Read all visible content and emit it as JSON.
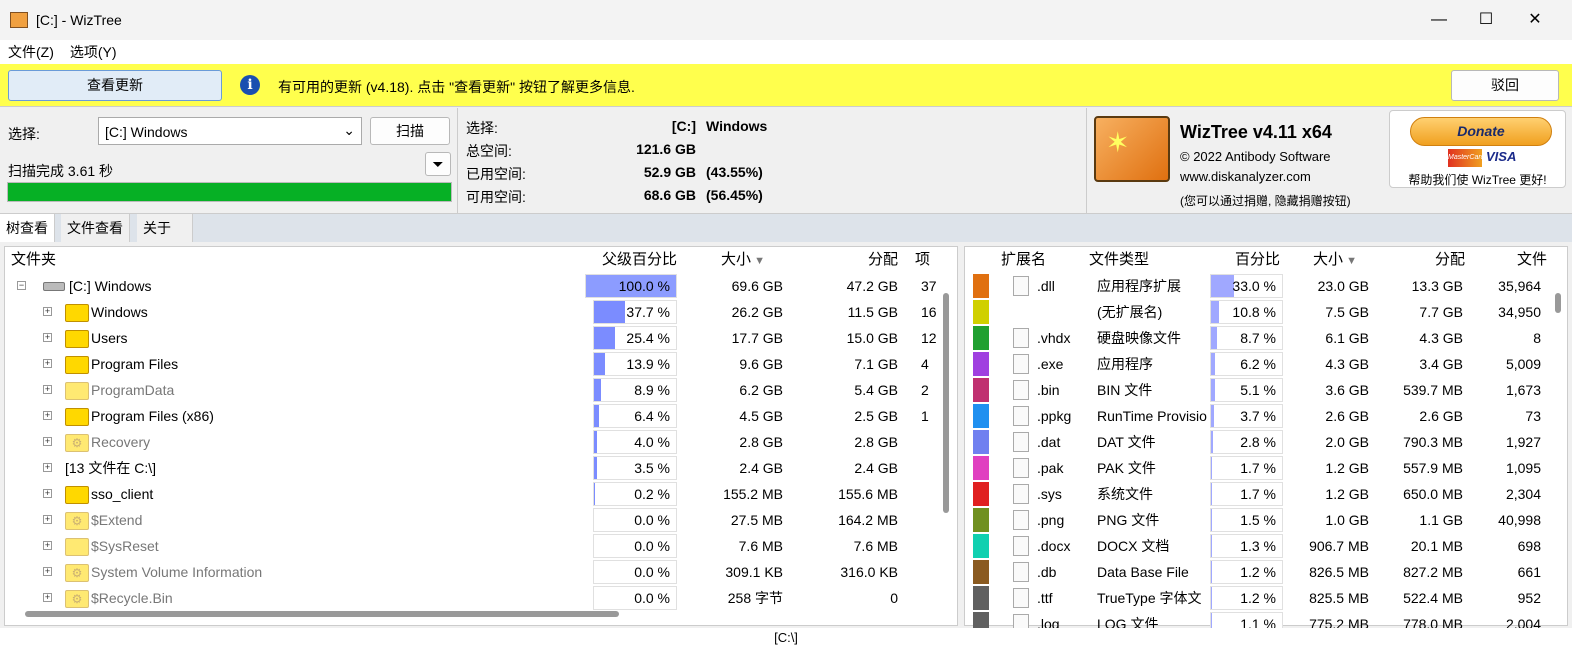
{
  "window": {
    "title": "[C:]  - WizTree",
    "minimize": "—",
    "maximize": "☐",
    "close": "✕"
  },
  "menu": [
    "文件(Z)",
    "选项(Y)"
  ],
  "update": {
    "button": "查看更新",
    "message": "有可用的更新 (v4.18). 点击 \"查看更新\" 按钮了解更多信息.",
    "dismiss": "驳回",
    "info_icon": "i"
  },
  "scan": {
    "select_label": "选择:",
    "drive_value": "[C:] Windows",
    "scan_button": "扫描",
    "status": "扫描完成 3.61 秒",
    "progress": 1.0,
    "filter_icon": "filter-icon"
  },
  "drive_info": {
    "rows": [
      {
        "label": "选择:",
        "value": "[C:]",
        "extra": "Windows"
      },
      {
        "label": "总空间:",
        "value": "121.6 GB",
        "extra": ""
      },
      {
        "label": "已用空间:",
        "value": "52.9 GB",
        "extra": "(43.55%)"
      },
      {
        "label": "可用空间:",
        "value": "68.6 GB",
        "extra": "(56.45%)"
      }
    ]
  },
  "about": {
    "title": "WizTree v4.11 x64",
    "copyright": "© 2022 Antibody Software",
    "url": "www.diskanalyzer.com",
    "note": "(您可以通过捐赠, 隐藏捐赠按钮)",
    "donate": "Donate",
    "mastercard": "MasterCard",
    "visa": "VISA",
    "help": "帮助我们使 WizTree 更好!"
  },
  "tabs": [
    "树查看",
    "文件查看",
    "关于"
  ],
  "tree": {
    "headers": [
      "文件夹",
      "父级百分比",
      "大小",
      "分配",
      "项"
    ],
    "rows": [
      {
        "name": "[C:] Windows",
        "pct": "100.0 %",
        "p": 100,
        "size": "69.6 GB",
        "alloc": "47.2 GB",
        "items": "37",
        "type": "drive",
        "exp": "−"
      },
      {
        "name": "Windows",
        "pct": "37.7 %",
        "p": 37.7,
        "size": "26.2 GB",
        "alloc": "11.5 GB",
        "items": "16",
        "type": "folder",
        "exp": "+"
      },
      {
        "name": "Users",
        "pct": "25.4 %",
        "p": 25.4,
        "size": "17.7 GB",
        "alloc": "15.0 GB",
        "items": "12",
        "type": "folder",
        "exp": "+"
      },
      {
        "name": "Program Files",
        "pct": "13.9 %",
        "p": 13.9,
        "size": "9.6 GB",
        "alloc": "7.1 GB",
        "items": "4",
        "type": "folder",
        "exp": "+"
      },
      {
        "name": "ProgramData",
        "pct": "8.9 %",
        "p": 8.9,
        "size": "6.2 GB",
        "alloc": "5.4 GB",
        "items": "2",
        "type": "folder-hidden",
        "exp": "+"
      },
      {
        "name": "Program Files (x86)",
        "pct": "6.4 %",
        "p": 6.4,
        "size": "4.5 GB",
        "alloc": "2.5 GB",
        "items": "1",
        "type": "folder",
        "exp": "+"
      },
      {
        "name": "Recovery",
        "pct": "4.0 %",
        "p": 4.0,
        "size": "2.8 GB",
        "alloc": "2.8 GB",
        "items": "",
        "type": "folder-system",
        "exp": "+"
      },
      {
        "name": "[13 文件在 C:\\]",
        "pct": "3.5 %",
        "p": 3.5,
        "size": "2.4 GB",
        "alloc": "2.4 GB",
        "items": "",
        "type": "files",
        "exp": "+"
      },
      {
        "name": "sso_client",
        "pct": "0.2 %",
        "p": 0.2,
        "size": "155.2 MB",
        "alloc": "155.6 MB",
        "items": "",
        "type": "folder",
        "exp": "+"
      },
      {
        "name": "$Extend",
        "pct": "0.0 %",
        "p": 0,
        "size": "27.5 MB",
        "alloc": "164.2 MB",
        "items": "",
        "type": "folder-system",
        "exp": "+"
      },
      {
        "name": "$SysReset",
        "pct": "0.0 %",
        "p": 0,
        "size": "7.6 MB",
        "alloc": "7.6 MB",
        "items": "",
        "type": "folder-hidden",
        "exp": "+"
      },
      {
        "name": "System Volume Information",
        "pct": "0.0 %",
        "p": 0,
        "size": "309.1 KB",
        "alloc": "316.0 KB",
        "items": "",
        "type": "folder-system",
        "exp": "+"
      },
      {
        "name": "$Recycle.Bin",
        "pct": "0.0 %",
        "p": 0,
        "size": "258 字节",
        "alloc": "0",
        "items": "",
        "type": "folder-system",
        "exp": "+"
      }
    ]
  },
  "ext": {
    "headers": [
      "扩展名",
      "文件类型",
      "百分比",
      "大小",
      "分配",
      "文件"
    ],
    "rows": [
      {
        "ext": ".dll",
        "type": "应用程序扩展",
        "pct": "33.0 %",
        "p": 33,
        "size": "23.0 GB",
        "alloc": "13.3 GB",
        "files": "35,964",
        "color": "#e07010"
      },
      {
        "ext": "",
        "type": "(无扩展名)",
        "pct": "10.8 %",
        "p": 10.8,
        "size": "7.5 GB",
        "alloc": "7.7 GB",
        "files": "34,950",
        "color": "#d0d000"
      },
      {
        "ext": ".vhdx",
        "type": "硬盘映像文件",
        "pct": "8.7 %",
        "p": 8.7,
        "size": "6.1 GB",
        "alloc": "4.3 GB",
        "files": "8",
        "color": "#20a030"
      },
      {
        "ext": ".exe",
        "type": "应用程序",
        "pct": "6.2 %",
        "p": 6.2,
        "size": "4.3 GB",
        "alloc": "3.4 GB",
        "files": "5,009",
        "color": "#a040e0"
      },
      {
        "ext": ".bin",
        "type": "BIN 文件",
        "pct": "5.1 %",
        "p": 5.1,
        "size": "3.6 GB",
        "alloc": "539.7 MB",
        "files": "1,673",
        "color": "#c03070"
      },
      {
        "ext": ".ppkg",
        "type": "RunTime Provisio",
        "pct": "3.7 %",
        "p": 3.7,
        "size": "2.6 GB",
        "alloc": "2.6 GB",
        "files": "73",
        "color": "#2090f0"
      },
      {
        "ext": ".dat",
        "type": "DAT 文件",
        "pct": "2.8 %",
        "p": 2.8,
        "size": "2.0 GB",
        "alloc": "790.3 MB",
        "files": "1,927",
        "color": "#7080f0"
      },
      {
        "ext": ".pak",
        "type": "PAK 文件",
        "pct": "1.7 %",
        "p": 1.7,
        "size": "1.2 GB",
        "alloc": "557.9 MB",
        "files": "1,095",
        "color": "#e040c0"
      },
      {
        "ext": ".sys",
        "type": "系统文件",
        "pct": "1.7 %",
        "p": 1.7,
        "size": "1.2 GB",
        "alloc": "650.0 MB",
        "files": "2,304",
        "color": "#e02020"
      },
      {
        "ext": ".png",
        "type": "PNG 文件",
        "pct": "1.5 %",
        "p": 1.5,
        "size": "1.0 GB",
        "alloc": "1.1 GB",
        "files": "40,998",
        "color": "#709020"
      },
      {
        "ext": ".docx",
        "type": "DOCX 文档",
        "pct": "1.3 %",
        "p": 1.3,
        "size": "906.7 MB",
        "alloc": "20.1 MB",
        "files": "698",
        "color": "#10d0b0"
      },
      {
        "ext": ".db",
        "type": "Data Base File",
        "pct": "1.2 %",
        "p": 1.2,
        "size": "826.5 MB",
        "alloc": "827.2 MB",
        "files": "661",
        "color": "#8a5a20"
      },
      {
        "ext": ".ttf",
        "type": "TrueType 字体文",
        "pct": "1.2 %",
        "p": 1.2,
        "size": "825.5 MB",
        "alloc": "522.4 MB",
        "files": "952",
        "color": "#606060"
      },
      {
        "ext": ".log",
        "type": "LOG 文件",
        "pct": "1.1 %",
        "p": 1.1,
        "size": "775.2 MB",
        "alloc": "778.0 MB",
        "files": "2,004",
        "color": "#606060"
      }
    ]
  },
  "status": "[C:\\]",
  "colors": {
    "update_bar": "#ffff4d",
    "progress": "#06b025",
    "tree_bar": "#7b8cff",
    "ext_bar": "#a0a8ff"
  }
}
